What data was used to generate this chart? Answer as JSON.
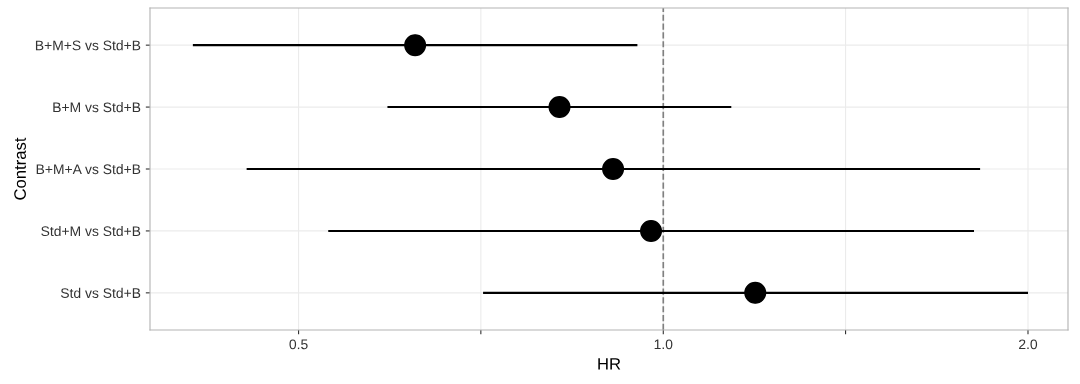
{
  "chart_data": {
    "type": "scatter",
    "orientation": "horizontal",
    "categories": [
      "B+M+S vs Std+B",
      "B+M vs Std+B",
      "B+M+A vs Std+B",
      "Std+M vs Std+B",
      "Std vs Std+B"
    ],
    "values": [
      0.624,
      0.821,
      0.909,
      0.977,
      1.191
    ],
    "errors": [
      [
        0.409,
        0.952
      ],
      [
        0.592,
        1.138
      ],
      [
        0.453,
        1.826
      ],
      [
        0.529,
        1.805
      ],
      [
        0.71,
        2.0
      ]
    ],
    "color": "#000000",
    "marker": "circle",
    "xlabel": "HR",
    "ylabel": "Contrast",
    "log": "x",
    "xlim": [
      0.377,
      2.158
    ],
    "xticks": [
      0.5,
      {
        "value": 0.707,
        "label": null
      },
      {
        "value": 1.0,
        "label": "1.0"
      },
      {
        "value": 1.414,
        "label": null
      },
      {
        "value": 2.0,
        "label": "2.0"
      }
    ],
    "ref_lines": [
      {
        "axis": "x",
        "value": 1.0,
        "color": "#808080",
        "line_style": "dashed"
      }
    ],
    "grid": true,
    "legend": false
  }
}
